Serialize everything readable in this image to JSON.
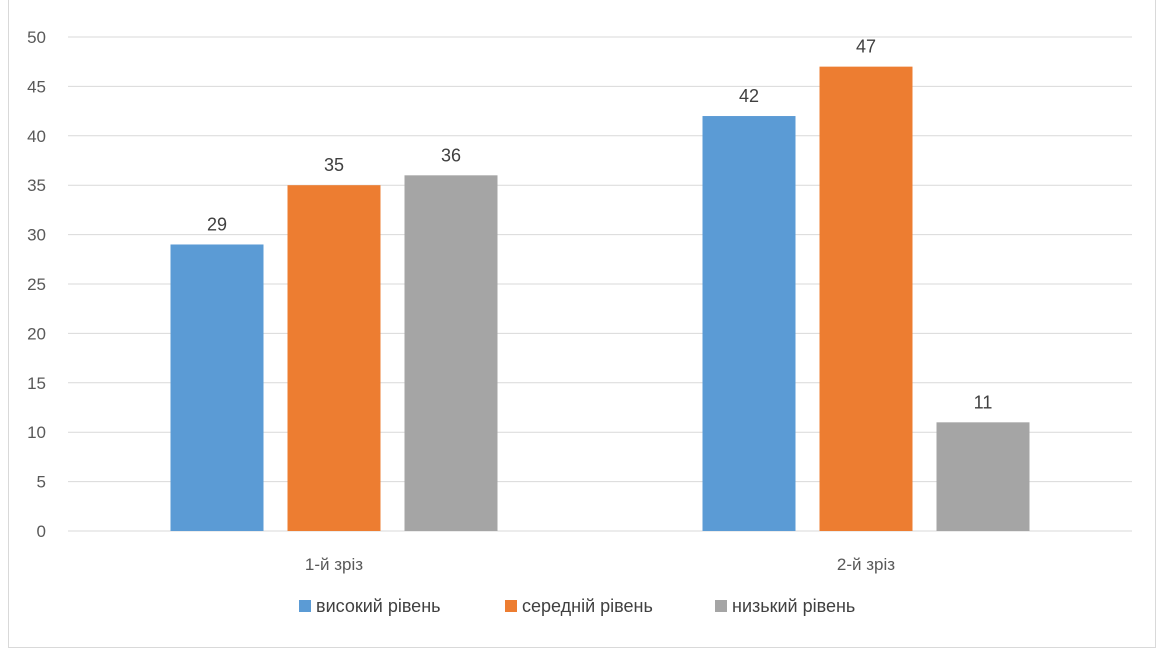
{
  "chart_data": {
    "type": "bar",
    "categories": [
      "1-й зріз",
      "2-й зріз"
    ],
    "series": [
      {
        "name": "високий рівень",
        "values": [
          29,
          42
        ],
        "color": "#5b9bd5"
      },
      {
        "name": "середній рівень",
        "values": [
          35,
          47
        ],
        "color": "#ed7d31"
      },
      {
        "name": "низький рівень",
        "values": [
          36,
          11
        ],
        "color": "#a5a5a5"
      }
    ],
    "ylim": [
      0,
      50
    ],
    "yticks": [
      0,
      5,
      10,
      15,
      20,
      25,
      30,
      35,
      40,
      45,
      50
    ],
    "grid": true,
    "legend_position": "bottom",
    "data_labels": true
  }
}
